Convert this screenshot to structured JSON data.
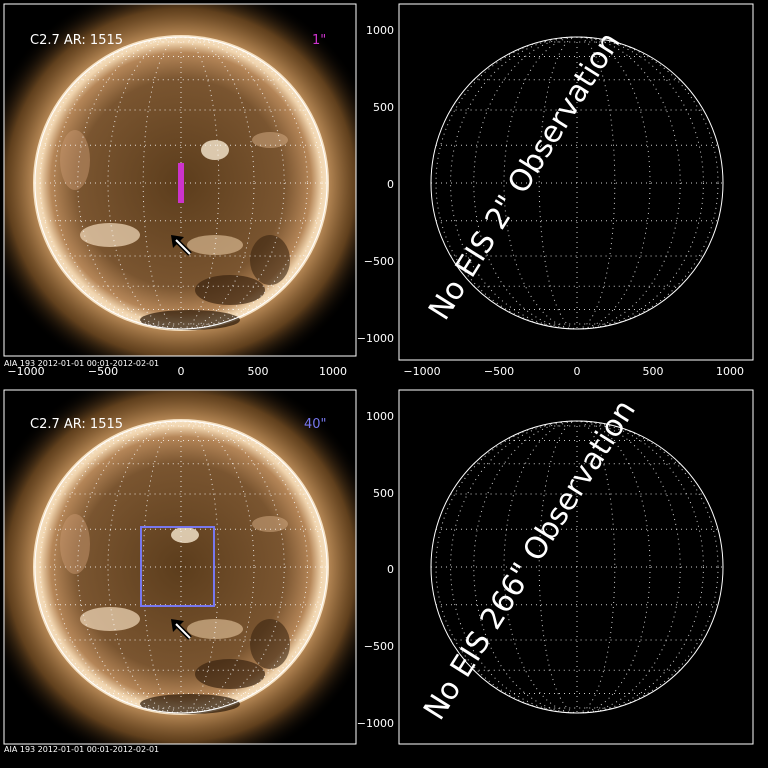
{
  "panels": [
    {
      "id": "top-left",
      "flare_label": "C2.7 AR: 1515",
      "slit_label": "1\"",
      "slit_color": "#cc33cc",
      "footer": "AIA 193 2012-01-01 00:01-2012-02-01",
      "x_ticks": [
        "−1000",
        "−500",
        "0",
        "500",
        "1000"
      ],
      "y_ticks": []
    },
    {
      "id": "top-right",
      "overlay_text": "No EIS 2\" Observation",
      "x_ticks": [
        "−1000",
        "−500",
        "0",
        "500",
        "1000"
      ],
      "y_ticks": [
        "1000",
        "500",
        "0",
        "−500",
        "−1000"
      ]
    },
    {
      "id": "bottom-left",
      "flare_label": "C2.7 AR: 1515",
      "slit_label": "40\"",
      "slit_color": "#7777ee",
      "footer": "AIA 193 2012-01-01 00:01-2012-02-01",
      "x_ticks": [],
      "y_ticks": []
    },
    {
      "id": "bottom-right",
      "overlay_text": "No EIS 266\" Observation",
      "x_ticks": [],
      "y_ticks": [
        "1000",
        "500",
        "0",
        "−500",
        "−1000"
      ]
    }
  ],
  "colors": {
    "sun_core": "#6b4a24",
    "sun_limb": "#e8c49a",
    "axes": "#ffffff",
    "pointer": "#ffffff"
  }
}
